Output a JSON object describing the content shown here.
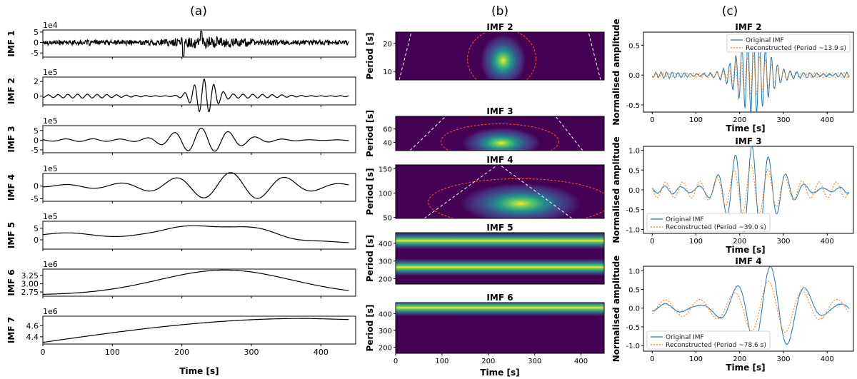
{
  "columns": {
    "a": {
      "label": "(a)"
    },
    "b": {
      "label": "(b)"
    },
    "c": {
      "label": "(c)"
    }
  },
  "chart_data": [
    {
      "type": "line",
      "panel": "a",
      "xlabel": "Time [s]",
      "xlim": [
        0,
        450
      ],
      "xticks": [
        0,
        100,
        200,
        300,
        400
      ],
      "series_color": "#000000",
      "rows": [
        {
          "ylabel": "IMF 1",
          "scale_label": "1e4",
          "ylim": [
            -7,
            6
          ],
          "yticks": [
            "5",
            "0",
            "-5"
          ],
          "ytick_values": [
            5,
            0,
            -5
          ],
          "shape": "noise"
        },
        {
          "ylabel": "IMF 2",
          "scale_label": "1e5",
          "ylim": [
            -1.2,
            2.6
          ],
          "yticks": [
            "2",
            "0"
          ],
          "ytick_values": [
            2,
            0
          ],
          "shape": "burst",
          "center_s": 232,
          "period_s": 14,
          "amplitude": 2.2
        },
        {
          "ylabel": "IMF 3",
          "scale_label": "1e5",
          "ylim": [
            -6.5,
            7.5
          ],
          "yticks": [
            "5",
            "0",
            "-5"
          ],
          "ytick_values": [
            5,
            0,
            -5
          ],
          "shape": "burst",
          "center_s": 228,
          "period_s": 39,
          "amplitude": 5.8
        },
        {
          "ylabel": "IMF 4",
          "scale_label": "1e5",
          "ylim": [
            -6,
            5
          ],
          "yticks": [
            "0",
            "-5"
          ],
          "ytick_values": [
            0,
            -5
          ],
          "shape": "burst",
          "center_s": 270,
          "period_s": 79,
          "amplitude": 4.8
        },
        {
          "ylabel": "IMF 5",
          "scale_label": "1e5",
          "ylim": [
            -4,
            8
          ],
          "yticks": [
            "5",
            "0"
          ],
          "ytick_values": [
            5,
            0
          ],
          "shape": "hump"
        },
        {
          "ylabel": "IMF 6",
          "scale_label": "1e6",
          "ylim": [
            2.62,
            3.45
          ],
          "yticks": [
            "3.25",
            "3.00",
            "2.75"
          ],
          "ytick_values": [
            3.25,
            3.0,
            2.75
          ],
          "shape": "gauss"
        },
        {
          "ylabel": "IMF 7",
          "scale_label": "1e6",
          "ylim": [
            4.27,
            4.77
          ],
          "yticks": [
            "4.6",
            "4.4"
          ],
          "ytick_values": [
            4.6,
            4.4
          ],
          "shape": "rise"
        }
      ]
    },
    {
      "type": "heatmap",
      "panel": "b",
      "xlabel": "Time [s]",
      "ylabel": "Period [s]",
      "xlim": [
        0,
        450
      ],
      "xticks": [
        0,
        100,
        200,
        300,
        400
      ],
      "colormap": "viridis",
      "contour_color": "#ff4d2e",
      "coi_color": "#ffffff",
      "rows": [
        {
          "title": "IMF 2",
          "ylim": [
            7,
            24
          ],
          "yticks": [
            20,
            10
          ],
          "peak_time_s": 232,
          "peak_period_s": 13.9
        },
        {
          "title": "IMF 3",
          "ylim": [
            28,
            78
          ],
          "yticks": [
            60,
            40
          ],
          "peak_time_s": 228,
          "peak_period_s": 39.0
        },
        {
          "title": "IMF 4",
          "ylim": [
            48,
            158
          ],
          "yticks": [
            150,
            100,
            50
          ],
          "peak_time_s": 270,
          "peak_period_s": 78.6
        },
        {
          "title": "IMF 5",
          "ylim": [
            170,
            460
          ],
          "yticks": [
            400,
            300,
            200
          ],
          "bands_period_s": [
            265,
            415
          ]
        },
        {
          "title": "IMF 6",
          "ylim": [
            165,
            465
          ],
          "yticks": [
            400,
            300,
            200
          ],
          "bands_period_s": [
            435
          ]
        }
      ]
    },
    {
      "type": "line",
      "panel": "c",
      "xlabel": "Time [s]",
      "ylabel": "Normalised amplitude",
      "xlim": [
        -20,
        460
      ],
      "xticks": [
        0,
        100,
        200,
        300,
        400
      ],
      "original_color": "#1f77b4",
      "reconstructed_color": "#ff7f0e",
      "rows": [
        {
          "title": "IMF 2",
          "ylim": [
            -0.62,
            0.72
          ],
          "yticks": [
            "0.5",
            "0.0",
            "-0.5"
          ],
          "ytick_values": [
            0.5,
            0.0,
            -0.5
          ],
          "legend_position": "top-right",
          "legend": [
            "Original IMF",
            "Reconstructed (Period ~13.9 s)"
          ],
          "period_s": 13.9,
          "center_s": 232
        },
        {
          "title": "IMF 3",
          "ylim": [
            -1.1,
            1.1
          ],
          "yticks": [
            "1.0",
            "0.5",
            "0.0",
            "-0.5",
            "-1.0"
          ],
          "ytick_values": [
            1.0,
            0.5,
            0.0,
            -0.5,
            -1.0
          ],
          "legend_position": "bottom-left",
          "legend": [
            "Original IMF",
            "Reconstructed (Period ~39.0 s)"
          ],
          "period_s": 39.0,
          "center_s": 228
        },
        {
          "title": "IMF 4",
          "ylim": [
            -1.15,
            1.12
          ],
          "yticks": [
            "1.0",
            "0.5",
            "0.0",
            "-0.5",
            "-1.0"
          ],
          "ytick_values": [
            1.0,
            0.5,
            0.0,
            -0.5,
            -1.0
          ],
          "legend_position": "bottom-left",
          "legend": [
            "Original IMF",
            "Reconstructed (Period ~78.6 s)"
          ],
          "period_s": 78.6,
          "center_s": 270
        }
      ]
    }
  ]
}
